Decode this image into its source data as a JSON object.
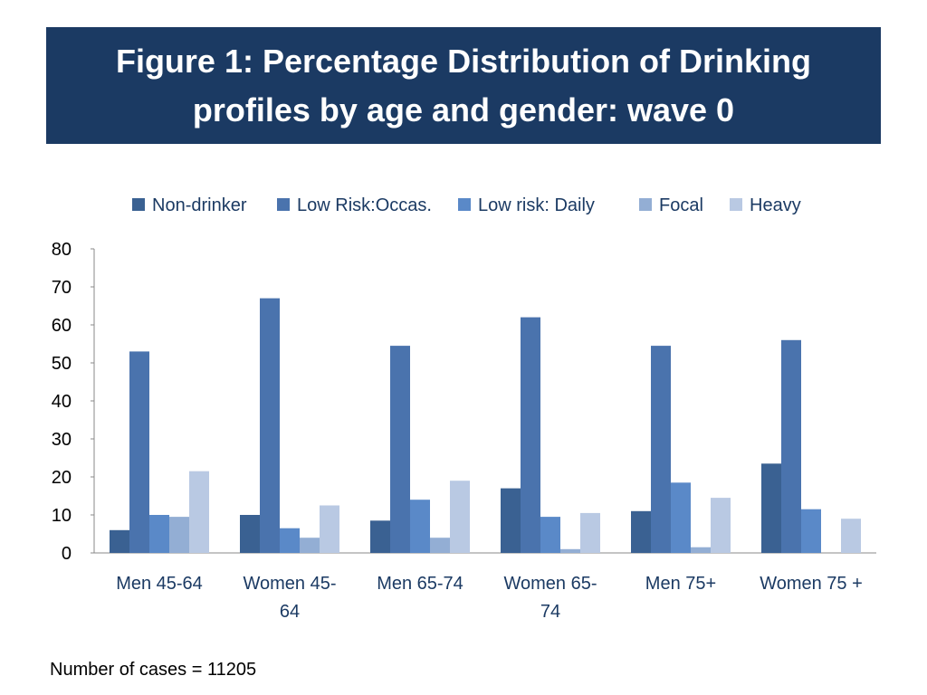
{
  "slide": {
    "title": "Figure 1: Percentage Distribution of Drinking\nprofiles by age and gender: wave 0",
    "footnote": "Number of cases = 11205"
  },
  "chart_data": {
    "type": "bar",
    "categories": [
      [
        "Men 45-64"
      ],
      [
        "Women 45-",
        "64"
      ],
      [
        "Men 65-74"
      ],
      [
        "Women 65-",
        "74"
      ],
      [
        "Men 75+"
      ],
      [
        "Women 75 +"
      ]
    ],
    "series": [
      {
        "name": "Non-drinker",
        "color": "#3a6192",
        "values": [
          6,
          10,
          8.5,
          17,
          11,
          23.5
        ]
      },
      {
        "name": "Low Risk:Occas.",
        "color": "#4a73ad",
        "values": [
          53,
          67,
          54.5,
          62,
          54.5,
          56
        ]
      },
      {
        "name": "Low risk: Daily",
        "color": "#5a89c8",
        "values": [
          10,
          6.5,
          14,
          9.5,
          18.5,
          11.5
        ]
      },
      {
        "name": "Focal",
        "color": "#93aed4",
        "values": [
          9.5,
          4,
          4,
          1,
          1.5,
          0
        ]
      },
      {
        "name": "Heavy",
        "color": "#b9c9e3",
        "values": [
          21.5,
          12.5,
          19,
          10.5,
          14.5,
          9
        ]
      }
    ],
    "yticks": [
      0,
      10,
      20,
      30,
      40,
      50,
      60,
      70,
      80
    ],
    "ylim": [
      0,
      80
    ],
    "grid": false,
    "legend": "top"
  }
}
